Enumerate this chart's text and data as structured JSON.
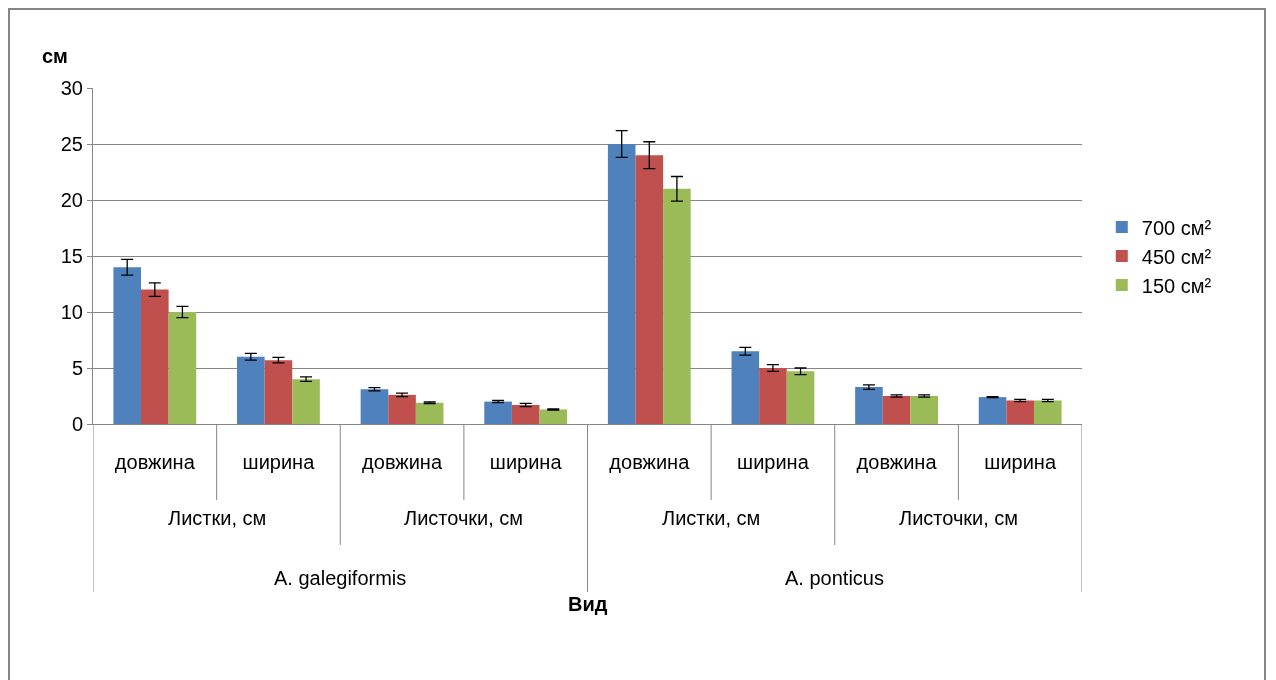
{
  "chart_data": {
    "type": "bar",
    "ylabel": "см",
    "categories": [
      "довжина",
      "ширина",
      "довжина",
      "ширина",
      "довжина",
      "ширина",
      "довжина",
      "ширина"
    ],
    "annotations": [
      "Листки, см",
      "Листочки, см",
      "Листки, см",
      "Листочки, см",
      "A. galegiformis",
      "A. ponticus",
      "Вид"
    ],
    "series": [
      {
        "name": "700 см²",
        "color": "#4f81bd",
        "values": [
          14,
          6.0,
          3.1,
          2.0,
          25,
          6.5,
          3.3,
          2.4
        ],
        "errors": [
          0.7,
          0.3,
          0.15,
          0.1,
          1.2,
          0.35,
          0.2,
          0.05
        ]
      },
      {
        "name": "450 см²",
        "color": "#c0504d",
        "values": [
          12,
          5.7,
          2.6,
          1.7,
          24,
          5.0,
          2.5,
          2.1
        ],
        "errors": [
          0.6,
          0.25,
          0.15,
          0.15,
          1.2,
          0.3,
          0.1,
          0.1
        ]
      },
      {
        "name": "150 см²",
        "color": "#9bbb59",
        "values": [
          10,
          4.0,
          1.9,
          1.3,
          21,
          4.7,
          2.5,
          2.1
        ],
        "errors": [
          0.5,
          0.2,
          0.07,
          0.05,
          1.1,
          0.3,
          0.1,
          0.1
        ]
      }
    ],
    "ylim": [
      0,
      30
    ],
    "yticks": [
      0,
      5,
      10,
      15,
      20,
      25,
      30
    ],
    "grid": "y",
    "legend": "right"
  }
}
